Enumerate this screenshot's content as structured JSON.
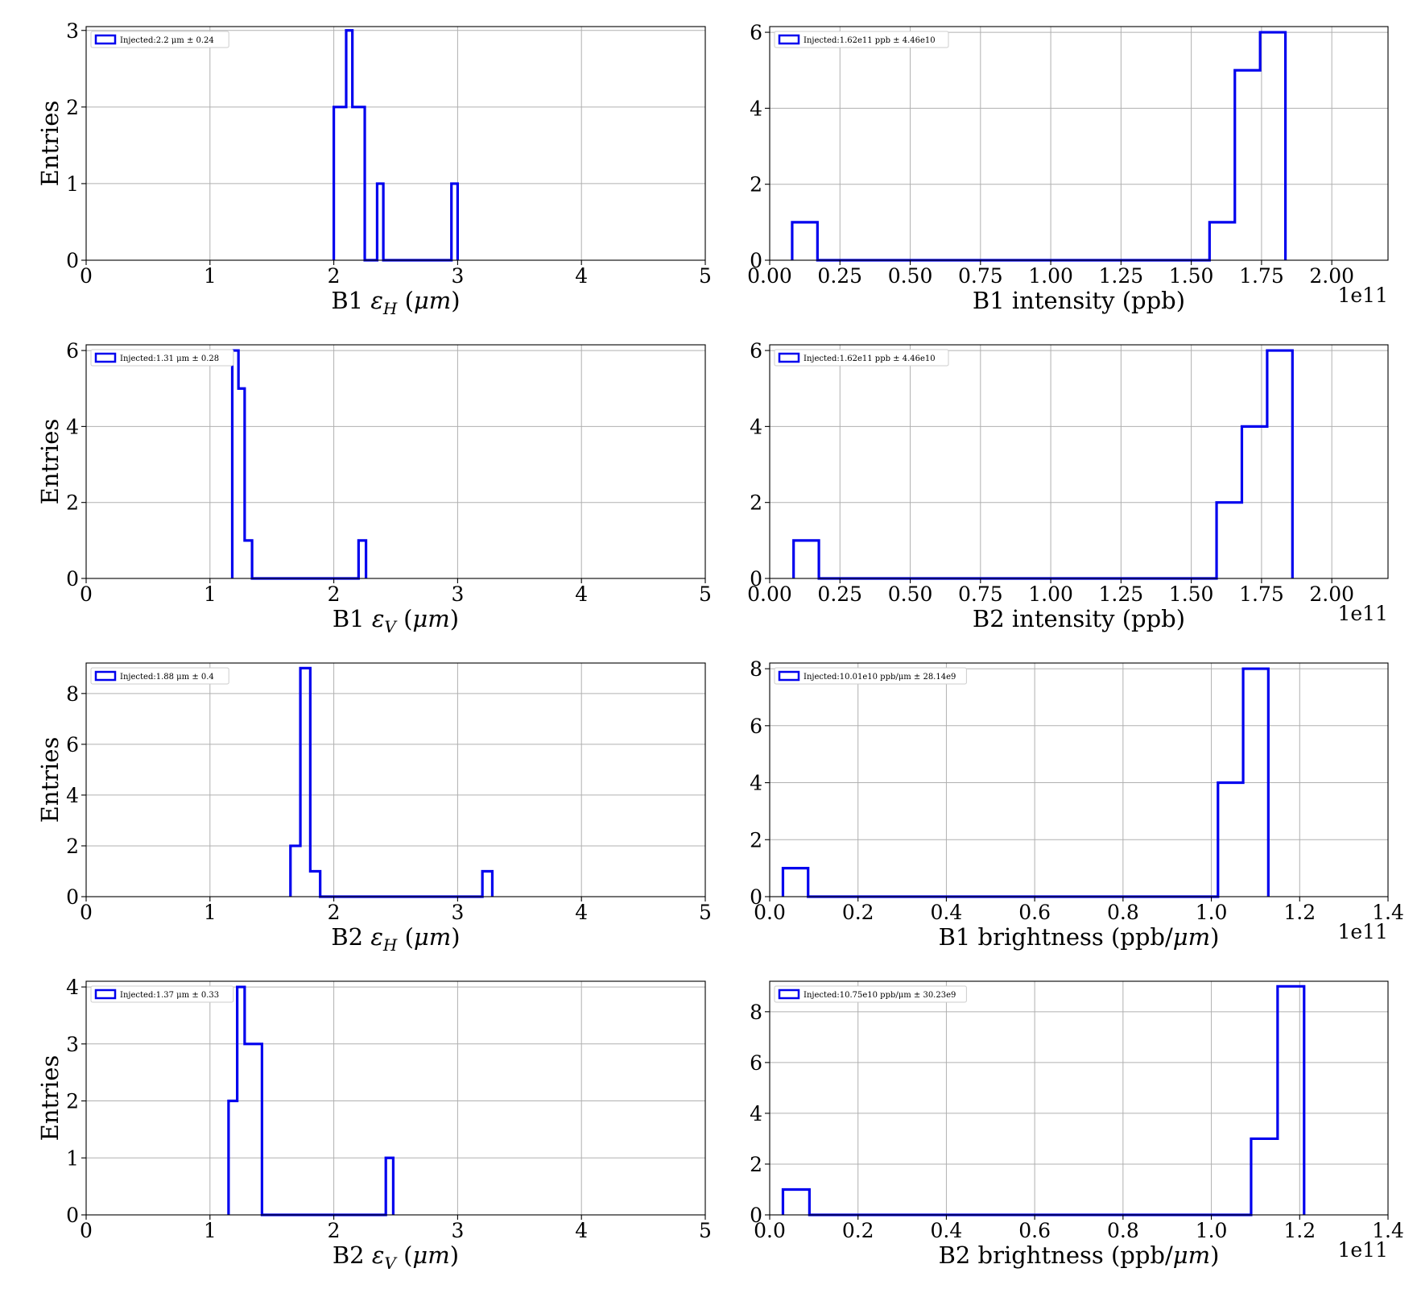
{
  "theme": {
    "line_color": "#0000ee",
    "grid_color": "#b0b0b0",
    "axis_color": "#000000"
  },
  "chart_data": [
    {
      "type": "histogram",
      "xlabel_prefix": "B1 ",
      "xlabel_sym": "ε",
      "xlabel_sub": "H",
      "xlabel_unit": " (μm)",
      "ylabel": "Entries",
      "xlim": [
        0,
        5
      ],
      "ylim": [
        0,
        3.05
      ],
      "xticks": [
        0,
        1,
        2,
        3,
        4,
        5
      ],
      "xtick_labels": [
        "0",
        "1",
        "2",
        "3",
        "4",
        "5"
      ],
      "yticks": [
        0,
        1,
        2,
        3
      ],
      "ytick_labels": [
        "0",
        "1",
        "2",
        "3"
      ],
      "offset_text": "",
      "legend": "Injected:2.2 μm ± 0.24",
      "legend_loc": "upper-left",
      "bins": [
        [
          2.0,
          2.1,
          2
        ],
        [
          2.1,
          2.15,
          3
        ],
        [
          2.15,
          2.25,
          2
        ],
        [
          2.25,
          2.35,
          0
        ],
        [
          2.35,
          2.4,
          1
        ],
        [
          2.4,
          2.95,
          0
        ],
        [
          2.95,
          3.0,
          1
        ]
      ]
    },
    {
      "type": "histogram",
      "xlabel_prefix": "B1 intensity (ppb)",
      "xlabel_sym": "",
      "xlabel_sub": "",
      "xlabel_unit": "",
      "ylabel": "",
      "xlim": [
        0,
        2.2
      ],
      "ylim": [
        0,
        6.15
      ],
      "xticks": [
        0,
        0.25,
        0.5,
        0.75,
        1.0,
        1.25,
        1.5,
        1.75,
        2.0
      ],
      "xtick_labels": [
        "0.00",
        "0.25",
        "0.50",
        "0.75",
        "1.00",
        "1.25",
        "1.50",
        "1.75",
        "2.00"
      ],
      "yticks": [
        0,
        2,
        4,
        6
      ],
      "ytick_labels": [
        "0",
        "2",
        "4",
        "6"
      ],
      "offset_text": "1e11",
      "legend": "Injected:1.62e11 ppb ± 4.46e10",
      "legend_loc": "upper-left",
      "bins": [
        [
          0.08,
          0.17,
          1
        ],
        [
          0.17,
          1.565,
          0
        ],
        [
          1.565,
          1.655,
          1
        ],
        [
          1.655,
          1.745,
          5
        ],
        [
          1.745,
          1.835,
          6
        ]
      ]
    },
    {
      "type": "histogram",
      "xlabel_prefix": "B1 ",
      "xlabel_sym": "ε",
      "xlabel_sub": "V",
      "xlabel_unit": " (μm)",
      "ylabel": "Entries",
      "xlim": [
        0,
        5
      ],
      "ylim": [
        0,
        6.15
      ],
      "xticks": [
        0,
        1,
        2,
        3,
        4,
        5
      ],
      "xtick_labels": [
        "0",
        "1",
        "2",
        "3",
        "4",
        "5"
      ],
      "yticks": [
        0,
        2,
        4,
        6
      ],
      "ytick_labels": [
        "0",
        "2",
        "4",
        "6"
      ],
      "offset_text": "",
      "legend": "Injected:1.31 μm ± 0.28",
      "legend_loc": "upper-left",
      "bins": [
        [
          1.18,
          1.23,
          6
        ],
        [
          1.23,
          1.28,
          5
        ],
        [
          1.28,
          1.34,
          1
        ],
        [
          1.34,
          2.2,
          0
        ],
        [
          2.2,
          2.26,
          1
        ]
      ]
    },
    {
      "type": "histogram",
      "xlabel_prefix": "B2 intensity (ppb)",
      "xlabel_sym": "",
      "xlabel_sub": "",
      "xlabel_unit": "",
      "ylabel": "",
      "xlim": [
        0,
        2.2
      ],
      "ylim": [
        0,
        6.15
      ],
      "xticks": [
        0,
        0.25,
        0.5,
        0.75,
        1.0,
        1.25,
        1.5,
        1.75,
        2.0
      ],
      "xtick_labels": [
        "0.00",
        "0.25",
        "0.50",
        "0.75",
        "1.00",
        "1.25",
        "1.50",
        "1.75",
        "2.00"
      ],
      "yticks": [
        0,
        2,
        4,
        6
      ],
      "ytick_labels": [
        "0",
        "2",
        "4",
        "6"
      ],
      "offset_text": "1e11",
      "legend": "Injected:1.62e11 ppb ± 4.46e10",
      "legend_loc": "upper-left",
      "bins": [
        [
          0.085,
          0.175,
          1
        ],
        [
          0.175,
          1.59,
          0
        ],
        [
          1.59,
          1.68,
          2
        ],
        [
          1.68,
          1.77,
          4
        ],
        [
          1.77,
          1.86,
          6
        ]
      ]
    },
    {
      "type": "histogram",
      "xlabel_prefix": "B2 ",
      "xlabel_sym": "ε",
      "xlabel_sub": "H",
      "xlabel_unit": " (μm)",
      "ylabel": "Entries",
      "xlim": [
        0,
        5
      ],
      "ylim": [
        0,
        9.2
      ],
      "xticks": [
        0,
        1,
        2,
        3,
        4,
        5
      ],
      "xtick_labels": [
        "0",
        "1",
        "2",
        "3",
        "4",
        "5"
      ],
      "yticks": [
        0,
        2,
        4,
        6,
        8
      ],
      "ytick_labels": [
        "0",
        "2",
        "4",
        "6",
        "8"
      ],
      "offset_text": "",
      "legend": "Injected:1.88 μm ± 0.4",
      "legend_loc": "upper-left",
      "bins": [
        [
          1.65,
          1.73,
          2
        ],
        [
          1.73,
          1.81,
          9
        ],
        [
          1.81,
          1.89,
          1
        ],
        [
          1.89,
          3.2,
          0
        ],
        [
          3.2,
          3.28,
          1
        ]
      ]
    },
    {
      "type": "histogram",
      "xlabel_prefix": "B1 brightness (ppb/",
      "xlabel_sym": "μm",
      "xlabel_sub": "",
      "xlabel_unit": ")",
      "ylabel": "",
      "xlim": [
        0,
        1.4
      ],
      "ylim": [
        0,
        8.2
      ],
      "xticks": [
        0,
        0.2,
        0.4,
        0.6,
        0.8,
        1.0,
        1.2,
        1.4
      ],
      "xtick_labels": [
        "0.0",
        "0.2",
        "0.4",
        "0.6",
        "0.8",
        "1.0",
        "1.2",
        "1.4"
      ],
      "yticks": [
        0,
        2,
        4,
        6,
        8
      ],
      "ytick_labels": [
        "0",
        "2",
        "4",
        "6",
        "8"
      ],
      "offset_text": "1e11",
      "legend": "Injected:10.01e10 ppb/μm ± 28.14e9",
      "legend_loc": "upper-left",
      "bins": [
        [
          0.03,
          0.087,
          1
        ],
        [
          0.087,
          1.015,
          0
        ],
        [
          1.015,
          1.072,
          4
        ],
        [
          1.072,
          1.129,
          8
        ]
      ]
    },
    {
      "type": "histogram",
      "xlabel_prefix": "B2 ",
      "xlabel_sym": "ε",
      "xlabel_sub": "V",
      "xlabel_unit": " (μm)",
      "ylabel": "Entries",
      "xlim": [
        0,
        5
      ],
      "ylim": [
        0,
        4.1
      ],
      "xticks": [
        0,
        1,
        2,
        3,
        4,
        5
      ],
      "xtick_labels": [
        "0",
        "1",
        "2",
        "3",
        "4",
        "5"
      ],
      "yticks": [
        0,
        1,
        2,
        3,
        4
      ],
      "ytick_labels": [
        "0",
        "1",
        "2",
        "3",
        "4"
      ],
      "offset_text": "",
      "legend": "Injected:1.37 μm ± 0.33",
      "legend_loc": "upper-left",
      "bins": [
        [
          1.15,
          1.22,
          2
        ],
        [
          1.22,
          1.28,
          4
        ],
        [
          1.28,
          1.42,
          3
        ],
        [
          1.42,
          2.42,
          0
        ],
        [
          2.42,
          2.48,
          1
        ]
      ]
    },
    {
      "type": "histogram",
      "xlabel_prefix": "B2 brightness (ppb/",
      "xlabel_sym": "μm",
      "xlabel_sub": "",
      "xlabel_unit": ")",
      "ylabel": "",
      "xlim": [
        0,
        1.4
      ],
      "ylim": [
        0,
        9.2
      ],
      "xticks": [
        0,
        0.2,
        0.4,
        0.6,
        0.8,
        1.0,
        1.2,
        1.4
      ],
      "xtick_labels": [
        "0.0",
        "0.2",
        "0.4",
        "0.6",
        "0.8",
        "1.0",
        "1.2",
        "1.4"
      ],
      "yticks": [
        0,
        2,
        4,
        6,
        8
      ],
      "ytick_labels": [
        "0",
        "2",
        "4",
        "6",
        "8"
      ],
      "offset_text": "1e11",
      "legend": "Injected:10.75e10 ppb/μm ± 30.23e9",
      "legend_loc": "upper-left",
      "bins": [
        [
          0.03,
          0.09,
          1
        ],
        [
          0.09,
          1.09,
          0
        ],
        [
          1.09,
          1.15,
          3
        ],
        [
          1.15,
          1.21,
          9
        ]
      ]
    }
  ]
}
